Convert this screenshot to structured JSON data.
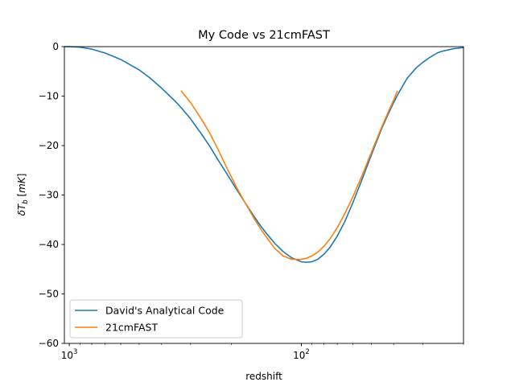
{
  "chart_data": {
    "type": "line",
    "title": "My Code vs 21cmFAST",
    "xlabel": "redshift",
    "ylabel_tex": "δT_b [mK]",
    "x_scale": "log",
    "x_axis": "reversed",
    "xlim": [
      1050,
      20
    ],
    "ylim": [
      -60,
      0
    ],
    "x_major_ticks": [
      {
        "value": 1000,
        "base": "10",
        "exp": "3"
      },
      {
        "value": 100,
        "base": "10",
        "exp": "2"
      }
    ],
    "y_ticks": [
      0,
      -10,
      -20,
      -30,
      -40,
      -50,
      -60
    ],
    "y_tick_labels": [
      "0",
      "−10",
      "−20",
      "−30",
      "−40",
      "−50",
      "−60"
    ],
    "legend_position": "lower-left",
    "series": [
      {
        "name": "David's Analytical Code",
        "color": "#1f77b4",
        "x": [
          1050,
          1000,
          900,
          800,
          700,
          600,
          500,
          450,
          400,
          350,
          330,
          300,
          270,
          250,
          230,
          210,
          190,
          175,
          160,
          150,
          140,
          130,
          120,
          110,
          100,
          95,
          90,
          85,
          80,
          75,
          70,
          65,
          60,
          55,
          50,
          45,
          42,
          40,
          38,
          36,
          35,
          32,
          30,
          28,
          26,
          25,
          23,
          22,
          21,
          20
        ],
        "y": [
          0.0,
          0.0,
          -0.1,
          -0.5,
          -1.3,
          -2.6,
          -4.7,
          -6.3,
          -8.4,
          -11.0,
          -12.3,
          -14.6,
          -17.6,
          -19.9,
          -22.7,
          -25.6,
          -28.9,
          -31.5,
          -34.3,
          -36.2,
          -38.0,
          -39.8,
          -41.4,
          -42.7,
          -43.5,
          -43.6,
          -43.5,
          -43.0,
          -42.0,
          -40.5,
          -38.3,
          -35.4,
          -31.6,
          -27.1,
          -22.0,
          -16.5,
          -13.4,
          -11.3,
          -9.3,
          -7.4,
          -6.4,
          -4.3,
          -3.2,
          -2.2,
          -1.3,
          -1.0,
          -0.6,
          -0.4,
          -0.3,
          -0.2
        ]
      },
      {
        "name": "21cmFAST",
        "color": "#ff7f0e",
        "x": [
          330,
          300,
          270,
          250,
          230,
          210,
          190,
          175,
          160,
          150,
          140,
          130,
          120,
          110,
          100,
          95,
          90,
          85,
          80,
          75,
          70,
          65,
          60,
          55,
          50,
          45,
          42,
          40,
          38.5
        ],
        "y": [
          -8.9,
          -11.3,
          -14.6,
          -17.2,
          -20.5,
          -24.4,
          -28.5,
          -31.5,
          -34.7,
          -36.8,
          -38.8,
          -40.8,
          -42.3,
          -43.0,
          -43.0,
          -42.8,
          -42.3,
          -41.6,
          -40.4,
          -38.8,
          -36.6,
          -33.8,
          -30.4,
          -26.3,
          -21.5,
          -16.2,
          -13.0,
          -10.8,
          -8.9
        ]
      }
    ]
  }
}
